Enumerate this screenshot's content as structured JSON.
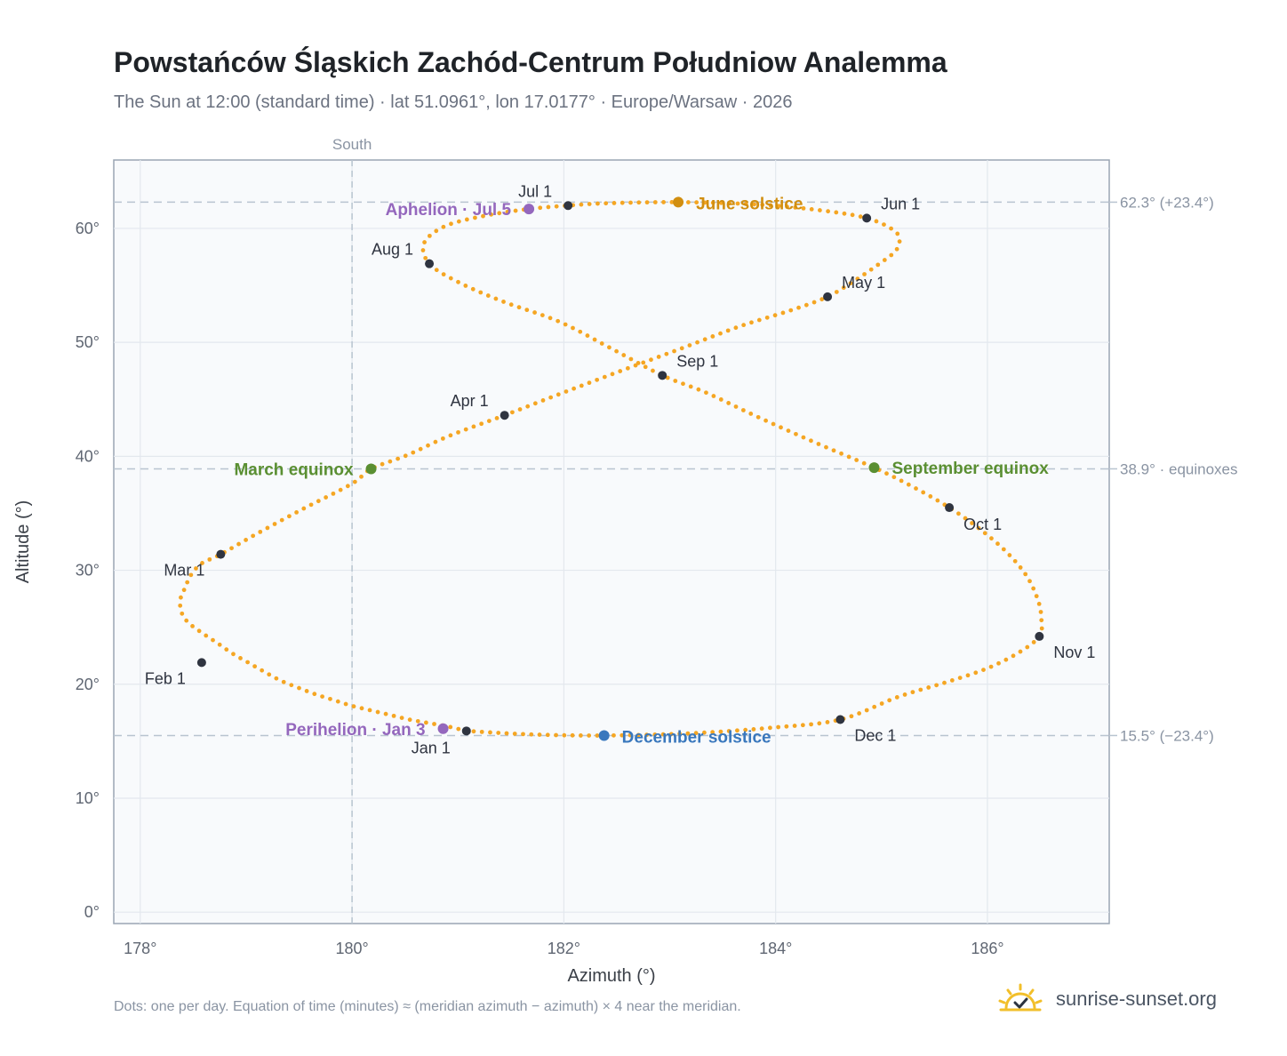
{
  "title": "Powstańców Śląskich Zachód-Centrum Południow Analemma",
  "subtitle": "The Sun at 12:00 (standard time) · lat 51.0961°, lon 17.0177° · Europe/Warsaw · 2026",
  "footnote": "Dots: one per day. Equation of time (minutes) ≈ (meridian azimuth − azimuth) × 4 near the meridian.",
  "brand": {
    "name": "sunrise-sunset.org",
    "logo_icon": "sun-checkmark-icon"
  },
  "chart_data": {
    "type": "scatter",
    "xlabel": "Azimuth (°)",
    "ylabel": "Altitude (°)",
    "xlim": [
      177.75,
      187.15
    ],
    "ylim": [
      -1.0,
      66.0
    ],
    "x_ticks": [
      178,
      180,
      182,
      184,
      186
    ],
    "x_tick_labels": [
      "178°",
      "180°",
      "182°",
      "184°",
      "186°"
    ],
    "y_ticks": [
      0,
      10,
      20,
      30,
      40,
      50,
      60
    ],
    "y_tick_labels": [
      "0°",
      "10°",
      "20°",
      "30°",
      "40°",
      "50°",
      "60°"
    ],
    "grid": true,
    "meridian": {
      "azimuth": 180,
      "label": "South"
    },
    "reference_lines": [
      {
        "altitude": 62.3,
        "label": "62.3° (+23.4°)"
      },
      {
        "altitude": 38.9,
        "label": "38.9° · equinoxes"
      },
      {
        "altitude": 15.5,
        "label": "15.5° (−23.4°)"
      }
    ],
    "month_markers": [
      {
        "label": "Jan 1",
        "azimuth": 181.08,
        "altitude": 15.9
      },
      {
        "label": "Feb 1",
        "azimuth": 178.58,
        "altitude": 21.9
      },
      {
        "label": "Mar 1",
        "azimuth": 178.76,
        "altitude": 31.4
      },
      {
        "label": "Apr 1",
        "azimuth": 181.44,
        "altitude": 43.6
      },
      {
        "label": "May 1",
        "azimuth": 184.49,
        "altitude": 54.0
      },
      {
        "label": "Jun 1",
        "azimuth": 184.86,
        "altitude": 60.9
      },
      {
        "label": "Jul 1",
        "azimuth": 182.04,
        "altitude": 62.0
      },
      {
        "label": "Aug 1",
        "azimuth": 180.73,
        "altitude": 56.9
      },
      {
        "label": "Sep 1",
        "azimuth": 182.93,
        "altitude": 47.1
      },
      {
        "label": "Oct 1",
        "azimuth": 185.64,
        "altitude": 35.5
      },
      {
        "label": "Nov 1",
        "azimuth": 186.49,
        "altitude": 24.2
      },
      {
        "label": "Dec 1",
        "azimuth": 184.61,
        "altitude": 16.9
      }
    ],
    "events": [
      {
        "label": "March equinox",
        "azimuth": 180.18,
        "altitude": 38.9,
        "color": "#5a8f32"
      },
      {
        "label": "June solstice",
        "azimuth": 183.08,
        "altitude": 62.3,
        "color": "#d18e10"
      },
      {
        "label": "September equinox",
        "azimuth": 184.93,
        "altitude": 39.0,
        "color": "#5a8f32"
      },
      {
        "label": "December solstice",
        "azimuth": 182.38,
        "altitude": 15.5,
        "color": "#3a78bd"
      },
      {
        "label": "Perihelion · Jan 3",
        "azimuth": 180.86,
        "altitude": 16.1,
        "color": "#9467bd"
      },
      {
        "label": "Aphelion · Jul 5",
        "azimuth": 181.67,
        "altitude": 61.7,
        "color": "#9467bd"
      }
    ],
    "daily_path": {
      "description_key": "one dot per day, 2026",
      "color": "#f5a623",
      "azimuth": [
        181.08,
        180.9,
        180.72,
        180.54,
        180.36,
        180.18,
        180.0,
        179.83,
        179.66,
        179.49,
        179.33,
        179.17,
        179.02,
        178.87,
        178.73,
        178.6,
        178.48,
        178.41,
        178.38,
        178.38,
        178.42,
        178.48,
        178.58,
        178.76,
        179.1,
        179.52,
        180.0,
        180.18,
        180.52,
        180.92,
        181.44,
        181.97,
        182.54,
        183.12,
        183.66,
        184.14,
        184.49,
        184.76,
        184.98,
        185.12,
        185.17,
        185.12,
        184.86,
        184.41,
        183.82,
        183.08,
        182.4,
        182.04,
        181.67,
        181.25,
        180.88,
        180.68,
        180.73,
        181.0,
        181.42,
        181.96,
        182.44,
        182.93,
        183.34,
        183.82,
        184.35,
        184.93,
        185.3,
        185.64,
        185.93,
        186.18,
        186.37,
        186.48,
        186.51,
        186.49,
        186.3,
        186.0,
        185.62,
        185.16,
        184.61,
        183.98,
        183.21,
        182.38,
        181.68,
        181.08
      ],
      "altitude": [
        15.9,
        16.3,
        16.6,
        16.9,
        17.3,
        17.7,
        18.1,
        18.6,
        19.1,
        19.7,
        20.3,
        21.1,
        21.9,
        22.7,
        23.6,
        24.4,
        25.2,
        25.9,
        26.7,
        27.5,
        28.4,
        29.6,
        30.6,
        31.4,
        33.2,
        35.3,
        37.6,
        38.9,
        40.1,
        41.8,
        43.6,
        45.5,
        47.5,
        49.5,
        51.4,
        52.8,
        54.0,
        55.5,
        56.9,
        57.9,
        58.8,
        59.8,
        60.9,
        61.6,
        62.1,
        62.3,
        62.2,
        62.0,
        61.7,
        61.1,
        60.2,
        58.7,
        56.9,
        55.3,
        53.6,
        51.8,
        49.5,
        47.1,
        45.6,
        43.5,
        41.3,
        39.0,
        37.3,
        35.5,
        33.6,
        31.6,
        29.5,
        27.3,
        25.6,
        24.2,
        22.8,
        21.4,
        20.2,
        18.9,
        16.9,
        16.2,
        15.7,
        15.5,
        15.6,
        15.9
      ]
    }
  }
}
